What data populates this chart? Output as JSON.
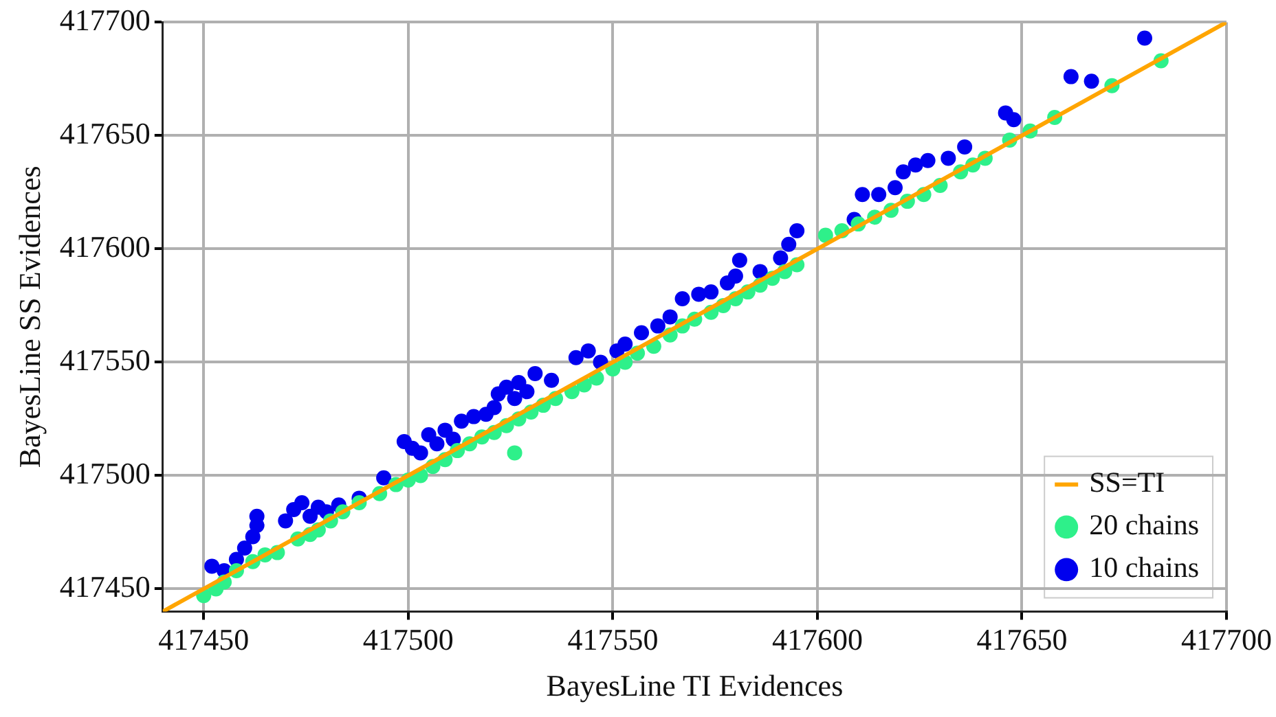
{
  "chart_data": {
    "type": "scatter",
    "xlabel": "BayesLine TI Evidences",
    "ylabel": "BayesLine SS Evidences",
    "xlim": [
      417440,
      417700
    ],
    "ylim": [
      417440,
      417700
    ],
    "xticks": [
      417450,
      417500,
      417550,
      417600,
      417650,
      417700
    ],
    "yticks": [
      417450,
      417500,
      417550,
      417600,
      417650,
      417700
    ],
    "grid": true,
    "legend": "bottom right",
    "marker": "circle",
    "series": [
      {
        "name": "SS=TI",
        "type": "line",
        "marker": "none",
        "color": "#ffa500",
        "x": [
          417440,
          417700
        ],
        "values": [
          417440,
          417700
        ]
      },
      {
        "name": "20 chains",
        "color": "#2ef08a",
        "x": [
          417450,
          417453,
          417455,
          417458,
          417462,
          417465,
          417468,
          417473,
          417476,
          417478,
          417481,
          417484,
          417488,
          417493,
          417497,
          417500,
          417503,
          417506,
          417509,
          417512,
          417515,
          417518,
          417521,
          417524,
          417526,
          417527,
          417530,
          417533,
          417536,
          417540,
          417543,
          417546,
          417550,
          417553,
          417556,
          417560,
          417564,
          417567,
          417570,
          417574,
          417577,
          417580,
          417583,
          417586,
          417589,
          417592,
          417595,
          417602,
          417606,
          417610,
          417614,
          417618,
          417622,
          417626,
          417630,
          417635,
          417638,
          417641,
          417647,
          417652,
          417658,
          417672,
          417684
        ],
        "values": [
          417447,
          417450,
          417453,
          417458,
          417462,
          417465,
          417466,
          417472,
          417474,
          417476,
          417480,
          417484,
          417488,
          417492,
          417496,
          417498,
          417500,
          417504,
          417507,
          417511,
          417514,
          417517,
          417519,
          417522,
          417510,
          417525,
          417528,
          417531,
          417534,
          417537,
          417540,
          417543,
          417547,
          417550,
          417554,
          417557,
          417562,
          417566,
          417569,
          417572,
          417575,
          417578,
          417581,
          417584,
          417587,
          417590,
          417593,
          417606,
          417608,
          417611,
          417614,
          417617,
          417621,
          417624,
          417628,
          417634,
          417637,
          417640,
          417648,
          417652,
          417658,
          417672,
          417683
        ]
      },
      {
        "name": "10 chains",
        "color": "#0000ee",
        "x": [
          417452,
          417455,
          417458,
          417460,
          417462,
          417463,
          417463,
          417470,
          417472,
          417474,
          417476,
          417478,
          417480,
          417483,
          417488,
          417494,
          417499,
          417501,
          417503,
          417505,
          417507,
          417509,
          417511,
          417513,
          417516,
          417519,
          417521,
          417522,
          417524,
          417526,
          417527,
          417529,
          417531,
          417535,
          417541,
          417544,
          417547,
          417551,
          417553,
          417557,
          417561,
          417564,
          417567,
          417571,
          417574,
          417578,
          417580,
          417581,
          417586,
          417591,
          417593,
          417595,
          417609,
          417611,
          417615,
          417619,
          417621,
          417624,
          417627,
          417632,
          417636,
          417646,
          417648,
          417662,
          417667,
          417680
        ],
        "values": [
          417460,
          417458,
          417463,
          417468,
          417473,
          417478,
          417482,
          417480,
          417485,
          417488,
          417482,
          417486,
          417484,
          417487,
          417490,
          417499,
          417515,
          417512,
          417510,
          417518,
          417514,
          417520,
          417516,
          417524,
          417526,
          417527,
          417530,
          417536,
          417539,
          417534,
          417541,
          417537,
          417545,
          417542,
          417552,
          417555,
          417550,
          417555,
          417558,
          417563,
          417566,
          417570,
          417578,
          417580,
          417581,
          417585,
          417588,
          417595,
          417590,
          417596,
          417602,
          417608,
          417613,
          417624,
          417624,
          417627,
          417634,
          417637,
          417639,
          417640,
          417645,
          417660,
          417657,
          417676,
          417674,
          417693
        ]
      }
    ]
  }
}
